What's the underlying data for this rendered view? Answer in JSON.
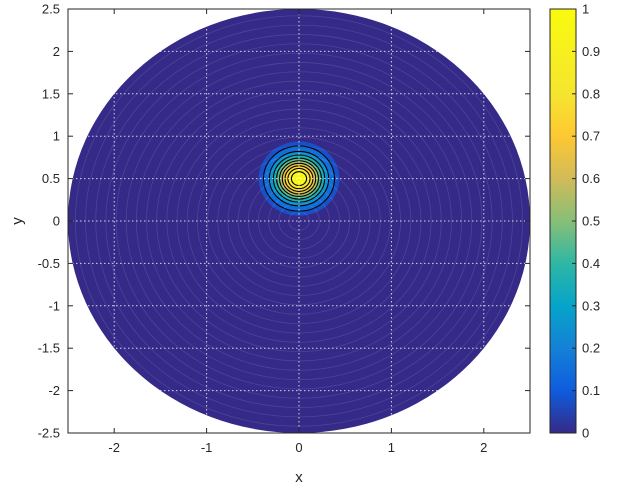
{
  "chart_data": {
    "type": "heatmap",
    "title": "",
    "xlabel": "x",
    "ylabel": "y",
    "xlim": [
      -2.5,
      2.5
    ],
    "ylim": [
      -2.5,
      2.5
    ],
    "grid": true,
    "x_ticks": [
      "-2",
      "-1",
      "0",
      "1",
      "2"
    ],
    "y_ticks": [
      "-2.5",
      "-2",
      "-1.5",
      "-1",
      "-0.5",
      "0",
      "0.5",
      "1",
      "1.5",
      "2",
      "2.5"
    ],
    "colorbar": {
      "colormap": "parula",
      "range": [
        0,
        1
      ],
      "ticks": [
        "0",
        "0.1",
        "0.2",
        "0.3",
        "0.4",
        "0.5",
        "0.6",
        "0.7",
        "0.8",
        "0.9",
        "1"
      ]
    },
    "domain": {
      "shape": "disk",
      "center": [
        0,
        0
      ],
      "radius": 2.5
    },
    "field": {
      "shape": "gaussian-bump",
      "peak_value": 1,
      "center": [
        0,
        0.5
      ],
      "extent_radius": 0.5
    },
    "contour_levels": [
      0.1,
      0.2,
      0.3,
      0.4,
      0.5,
      0.6,
      0.7,
      0.8,
      0.9
    ],
    "colors": {
      "low": "#352a87",
      "high": "#f9fb0e",
      "contour": "#000000",
      "grid": "#ffffff",
      "axis": "#262626"
    }
  }
}
